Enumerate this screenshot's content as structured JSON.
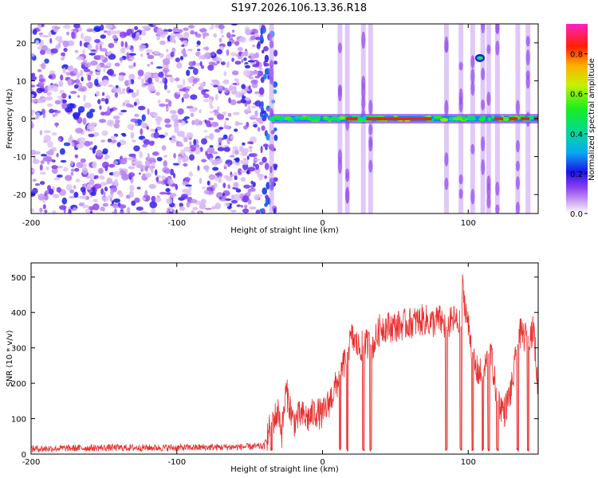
{
  "title": "S197.2026.106.13.36.R18",
  "chart_data": [
    {
      "type": "heatmap",
      "xlabel": "Height of straight line (km)",
      "ylabel": "Frequency (Hz)",
      "xlim": [
        -200,
        148
      ],
      "ylim": [
        -25,
        25
      ],
      "xticks": [
        -200,
        -100,
        0,
        100
      ],
      "xtick_labels": [
        "-200",
        "-100",
        "0",
        "100"
      ],
      "yticks": [
        20,
        10,
        0,
        -10,
        -20
      ],
      "ytick_labels": [
        "20",
        "10",
        "0",
        "-10",
        "-20"
      ],
      "colorbar": {
        "label": "Normalized spectral amplitude",
        "range": [
          0.0,
          0.95
        ],
        "ticks": [
          0.0,
          0.2,
          0.4,
          0.6,
          0.8
        ],
        "tick_labels": [
          "0.0",
          "0.2",
          "0.4",
          "0.6",
          "0.8"
        ]
      },
      "features": [
        {
          "name": "broadband noise",
          "x_range": [
            -200,
            -42
          ],
          "y_range": [
            -25,
            25
          ],
          "amplitude": 0.15
        },
        {
          "name": "transition burst",
          "x_range": [
            -42,
            -32
          ],
          "y_range": [
            -25,
            25
          ],
          "amplitude": 0.25
        },
        {
          "name": "carrier near 0 Hz",
          "x_range": [
            -35,
            148
          ],
          "freq": 0,
          "amplitude": 0.9
        },
        {
          "name": "spur near +16 Hz",
          "x_range": [
            104,
            112
          ],
          "freq": 16,
          "amplitude": 0.45
        }
      ]
    },
    {
      "type": "line",
      "xlabel": "Height of straight line (km)",
      "ylabel": "SNR (10 * v/v)",
      "xlim": [
        -200,
        148
      ],
      "ylim": [
        0,
        540
      ],
      "xticks": [
        -200,
        -100,
        0,
        100
      ],
      "xtick_labels": [
        "-200",
        "-100",
        "0",
        "100"
      ],
      "yticks": [
        0,
        100,
        200,
        300,
        400,
        500
      ],
      "ytick_labels": [
        "0",
        "100",
        "200",
        "300",
        "400",
        "500"
      ],
      "series": [
        {
          "name": "SNR",
          "color": "#e8302e",
          "x": [
            -200,
            -150,
            -100,
            -60,
            -40,
            -35,
            -30,
            -28,
            -25,
            -20,
            -15,
            -10,
            -5,
            0,
            5,
            10,
            15,
            20,
            25,
            30,
            35,
            40,
            50,
            60,
            70,
            75,
            80,
            85,
            90,
            95,
            96,
            100,
            105,
            110,
            115,
            120,
            125,
            130,
            135,
            140,
            145,
            148
          ],
          "y": [
            15,
            18,
            18,
            20,
            22,
            90,
            120,
            60,
            180,
            90,
            110,
            100,
            120,
            110,
            150,
            200,
            260,
            330,
            300,
            310,
            310,
            360,
            360,
            370,
            380,
            370,
            380,
            360,
            380,
            360,
            470,
            360,
            240,
            220,
            300,
            150,
            120,
            190,
            340,
            330,
            350,
            170
          ]
        }
      ],
      "dropouts": [
        -35,
        12,
        17,
        28,
        33,
        85,
        95,
        103,
        110,
        114,
        120,
        134,
        141
      ]
    }
  ]
}
